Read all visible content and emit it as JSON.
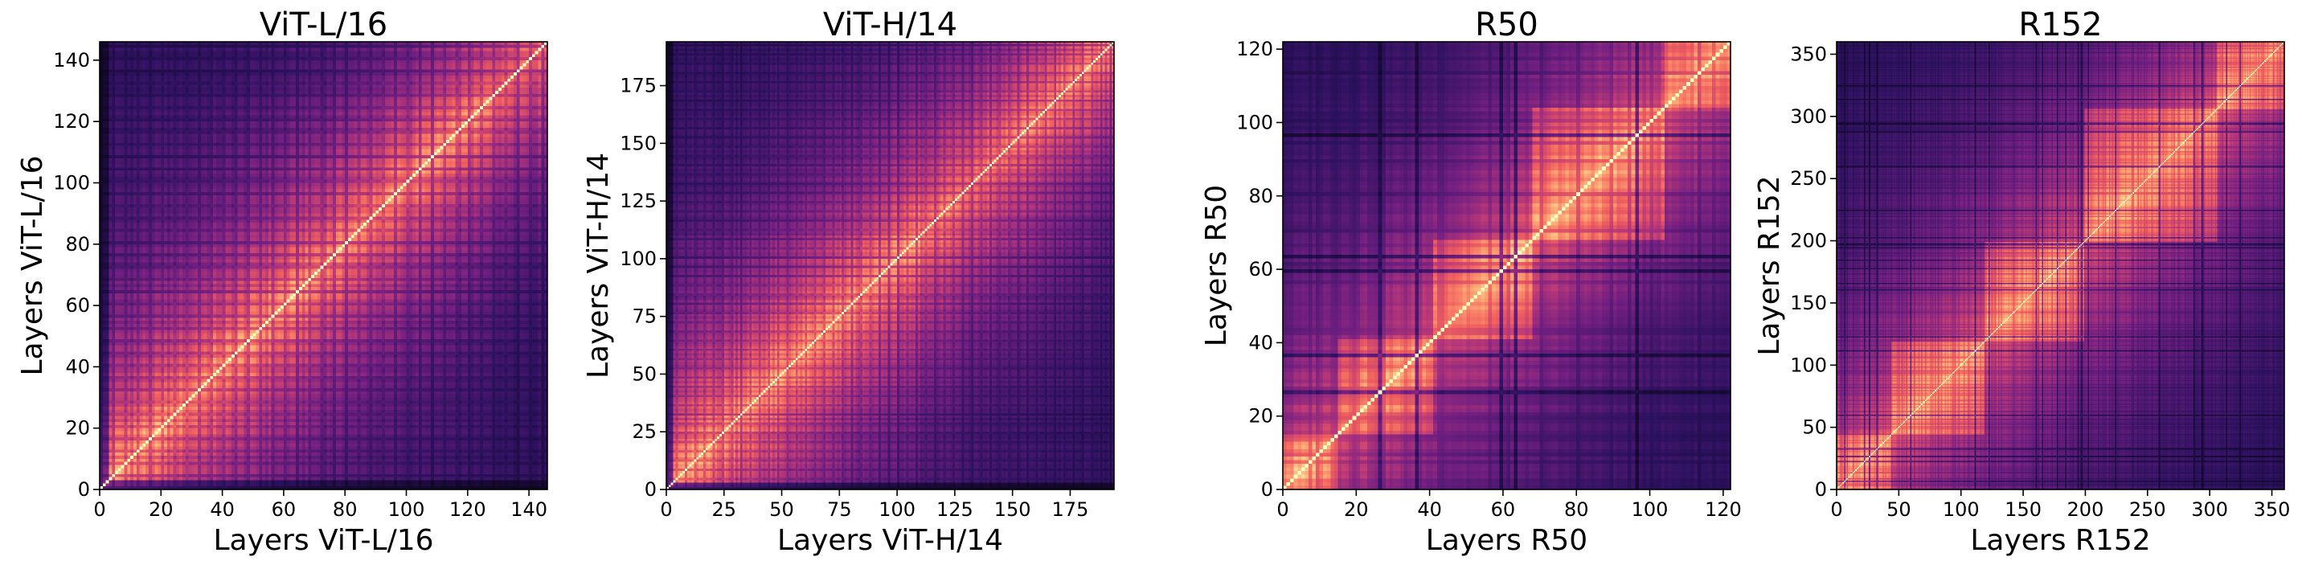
{
  "figure": {
    "colormap": "magma",
    "colormap_stops": [
      "#000004",
      "#2c115f",
      "#721f81",
      "#b73779",
      "#f1605d",
      "#feb078",
      "#fcfdbf"
    ]
  },
  "chart_data": [
    {
      "type": "heatmap",
      "title": "ViT-L/16",
      "xlabel": "Layers ViT-L/16",
      "ylabel": "Layers ViT-L/16",
      "n_layers": 146,
      "xlim": [
        0,
        146
      ],
      "ylim": [
        0,
        146
      ],
      "xticks": [
        0,
        20,
        40,
        60,
        80,
        100,
        120,
        140
      ],
      "yticks": [
        0,
        20,
        40,
        60,
        80,
        100,
        120,
        140
      ],
      "value_range": [
        0,
        1
      ],
      "diagonal_value": 1.0,
      "pattern": "similarity high near diagonal, decaying with layer distance; periodic block striping"
    },
    {
      "type": "heatmap",
      "title": "ViT-H/14",
      "xlabel": "Layers ViT-H/14",
      "ylabel": "Layers ViT-H/14",
      "n_layers": 194,
      "xlim": [
        0,
        194
      ],
      "ylim": [
        0,
        194
      ],
      "xticks": [
        0,
        25,
        50,
        75,
        100,
        125,
        150,
        175
      ],
      "yticks": [
        0,
        25,
        50,
        75,
        100,
        125,
        150,
        175
      ],
      "value_range": [
        0,
        1
      ],
      "diagonal_value": 1.0,
      "pattern": "similarity high near diagonal, decaying with layer distance; periodic block striping"
    },
    {
      "type": "heatmap",
      "title": "R50",
      "xlabel": "Layers R50",
      "ylabel": "Layers R50",
      "n_layers": 122,
      "xlim": [
        0,
        122
      ],
      "ylim": [
        0,
        122
      ],
      "xticks": [
        0,
        20,
        40,
        60,
        80,
        100,
        120
      ],
      "yticks": [
        0,
        20,
        40,
        60,
        80,
        100,
        120
      ],
      "value_range": [
        0,
        1
      ],
      "diagonal_value": 1.0,
      "pattern": "blocky similarity with stage boundaries"
    },
    {
      "type": "heatmap",
      "title": "R152",
      "xlabel": "Layers R152",
      "ylabel": "Layers R152",
      "n_layers": 360,
      "xlim": [
        0,
        360
      ],
      "ylim": [
        0,
        360
      ],
      "xticks": [
        0,
        50,
        100,
        150,
        200,
        250,
        300,
        350
      ],
      "yticks": [
        0,
        50,
        100,
        150,
        200,
        250,
        300,
        350
      ],
      "value_range": [
        0,
        1
      ],
      "diagonal_value": 1.0,
      "pattern": "blocky similarity with stage boundaries"
    }
  ]
}
